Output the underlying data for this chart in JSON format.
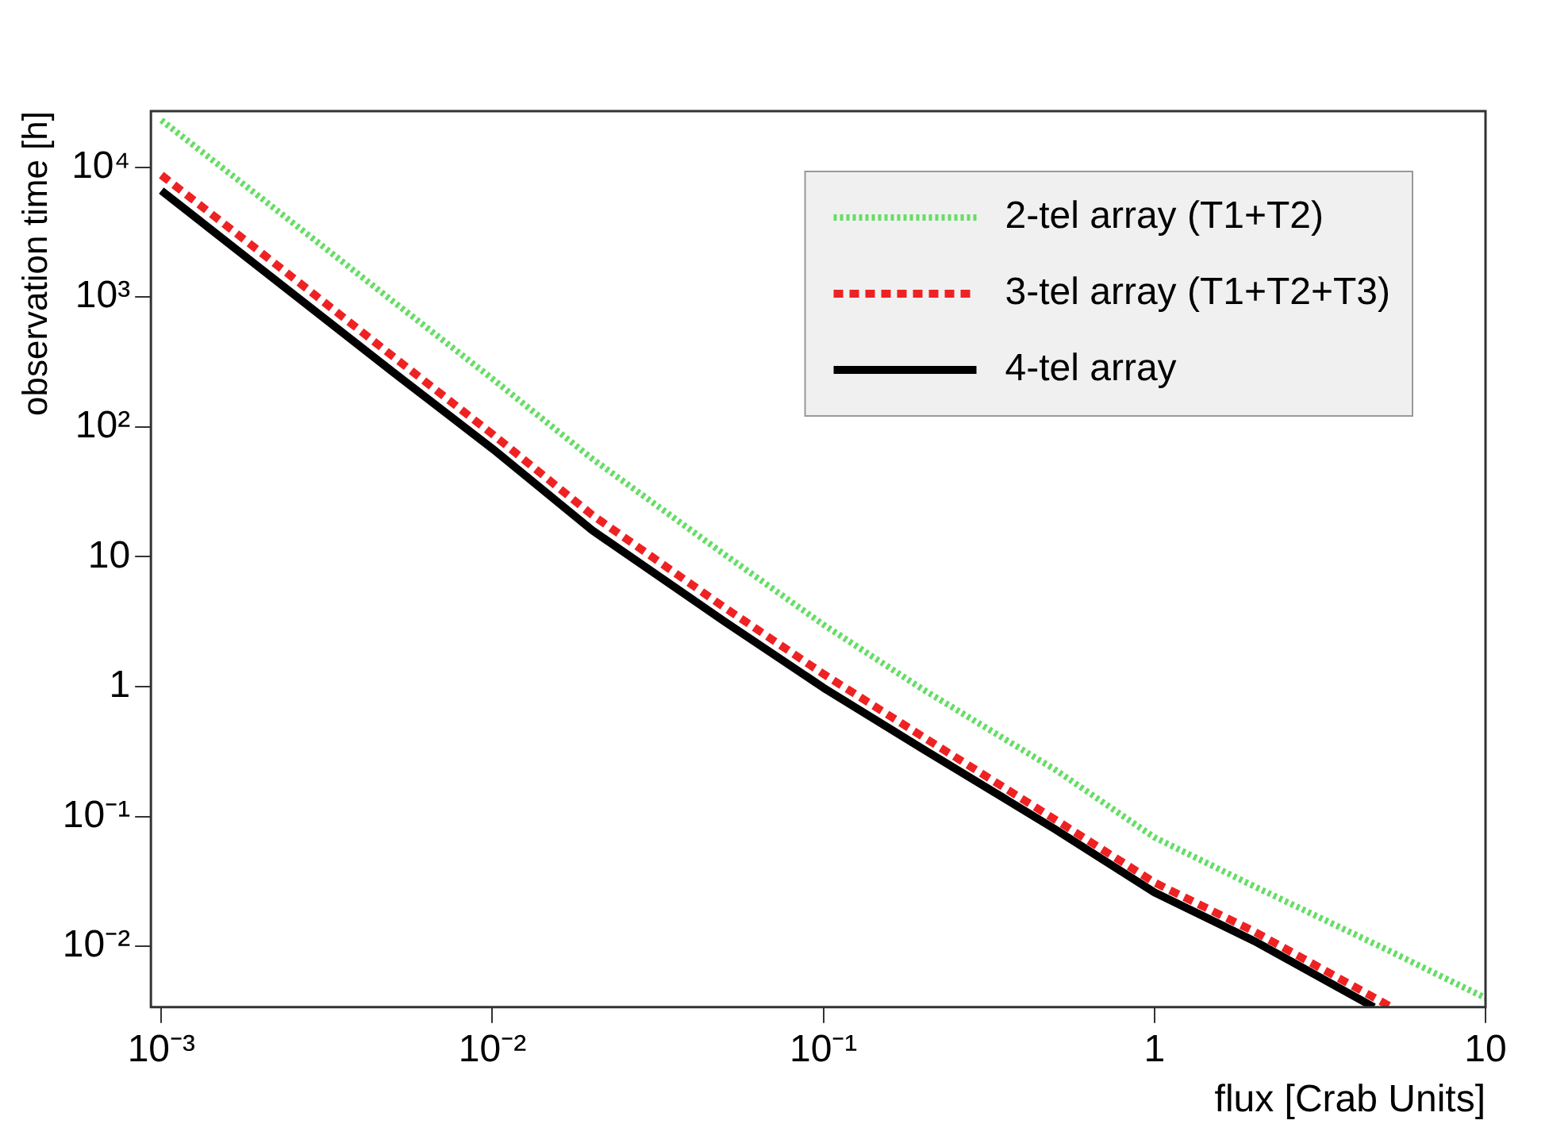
{
  "chart_data": {
    "type": "line",
    "xlabel": "flux [Crab Units]",
    "ylabel": "observation time [h]",
    "log": "xy",
    "grid": false,
    "legend": "top right",
    "marker": "none",
    "xlim": [
      0.00093,
      10
    ],
    "ylim": [
      0.0034,
      27000
    ],
    "xticks": [
      {
        "value": 0.001,
        "label": "10⁻³"
      },
      {
        "value": 0.01,
        "label": "10⁻²"
      },
      {
        "value": 0.1,
        "label": "10⁻¹"
      },
      1,
      10
    ],
    "yticks": [
      {
        "value": 0.01,
        "label": "10⁻²"
      },
      {
        "value": 0.1,
        "label": "10⁻¹"
      },
      1,
      10,
      {
        "value": 100,
        "label": "10²"
      },
      {
        "value": 1000,
        "label": "10³"
      },
      {
        "value": 10000,
        "label": "10⁴"
      }
    ],
    "series": [
      {
        "name": "2-tel array (T1+T2)",
        "color": "#66dd66",
        "line_style": "dotted",
        "x": [
          0.001,
          0.002,
          0.005,
          0.01,
          0.02,
          0.05,
          0.1,
          0.2,
          0.5,
          1,
          2,
          5,
          10
        ],
        "values": [
          23000,
          5800,
          930,
          235,
          57,
          10.5,
          3.0,
          0.95,
          0.23,
          0.069,
          0.029,
          0.0095,
          0.004
        ]
      },
      {
        "name": "3-tel array (T1+T2+T3)",
        "color": "#ee2222",
        "line_style": "dashed",
        "x": [
          0.001,
          0.002,
          0.005,
          0.01,
          0.02,
          0.05,
          0.1,
          0.2,
          0.5,
          1,
          2,
          5.2
        ],
        "values": [
          8700,
          2200,
          350,
          88,
          21,
          4.1,
          1.25,
          0.41,
          0.095,
          0.031,
          0.013,
          0.0034
        ]
      },
      {
        "name": "4-tel array",
        "color": "#000000",
        "line_style": "solid",
        "x": [
          0.001,
          0.002,
          0.005,
          0.01,
          0.02,
          0.05,
          0.1,
          0.2,
          0.5,
          1,
          2,
          4.6
        ],
        "values": [
          6600,
          1650,
          265,
          68,
          16,
          3.2,
          0.98,
          0.33,
          0.08,
          0.026,
          0.011,
          0.0034
        ]
      }
    ]
  }
}
